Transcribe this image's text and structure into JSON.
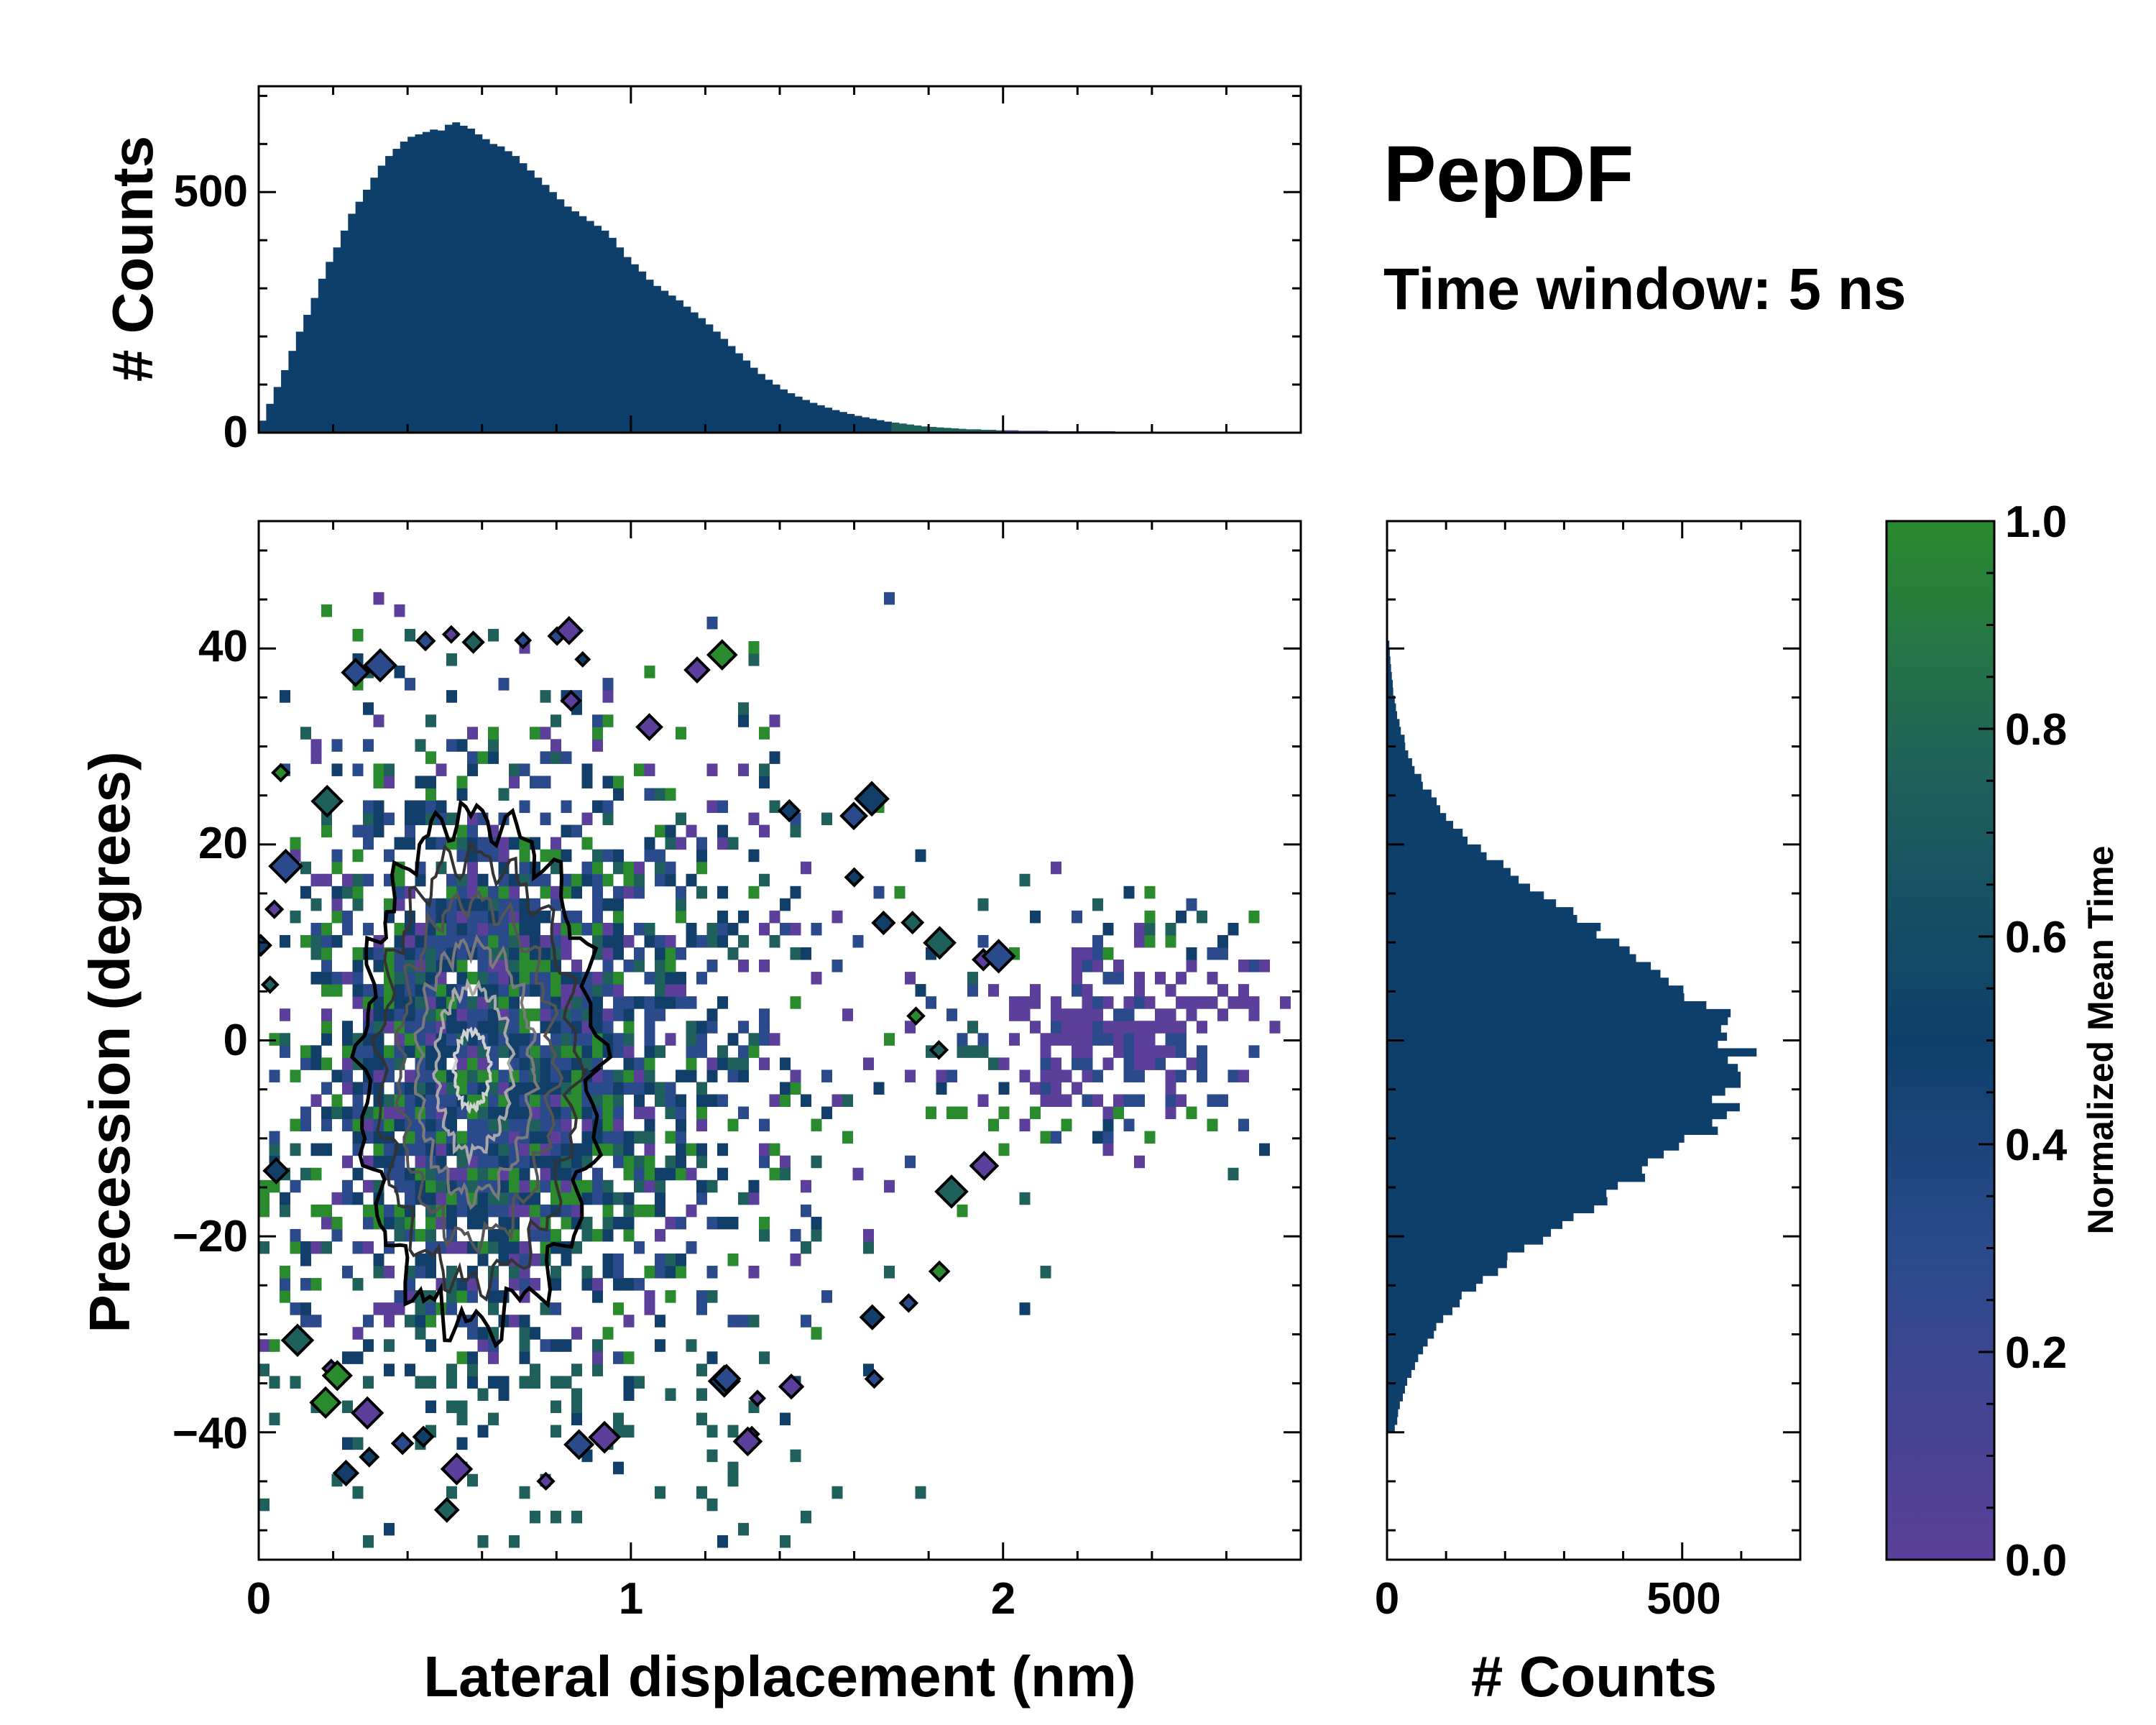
{
  "title": "PepDF",
  "subtitle": "Time window: 5 ns",
  "colors": {
    "bar": "#0e3f6a",
    "purple": "#5b3f9a",
    "blue": "#2a4a8c",
    "navy": "#123f6a",
    "teal": "#1f5f5c",
    "green": "#2a8a2e"
  },
  "chart_data": [
    {
      "id": "joint",
      "type": "heatmap",
      "xlabel": "Lateral displacement (nm)",
      "ylabel": "Precession (degrees)",
      "xlim": [
        0,
        2.8
      ],
      "ylim": [
        -53,
        53
      ],
      "x_ticks": [
        0,
        1,
        2
      ],
      "x_tick_labels": [
        "0",
        "1",
        "2"
      ],
      "y_ticks": [
        -40,
        -20,
        0,
        20,
        40
      ],
      "y_tick_labels": [
        "−40",
        "−20",
        "0",
        "20",
        "40"
      ],
      "density_center": {
        "x": 0.55,
        "y": -3
      },
      "density_spread": {
        "x": 0.42,
        "y": 17
      },
      "contour_levels": 5,
      "colorbar": {
        "label": "Normalized Mean Time",
        "range": [
          0.0,
          1.0
        ],
        "ticks": [
          "0.0",
          "0.2",
          "0.4",
          "0.6",
          "0.8",
          "1.0"
        ],
        "colors": [
          "#5b3f9a",
          "#2a4a8c",
          "#0e3f6a",
          "#1f5f5c",
          "#2a8a2e"
        ]
      }
    },
    {
      "id": "x-marginal",
      "type": "bar",
      "orientation": "vertical",
      "ylabel": "# Counts",
      "xlim": [
        0,
        2.8
      ],
      "ylim": [
        0,
        720
      ],
      "y_ticks": [
        0,
        500
      ],
      "y_tick_labels": [
        "0",
        "500"
      ],
      "bin_width": 0.02,
      "x": [
        0.01,
        0.03,
        0.05,
        0.07,
        0.09,
        0.11,
        0.13,
        0.15,
        0.17,
        0.19,
        0.21,
        0.23,
        0.25,
        0.27,
        0.29,
        0.31,
        0.33,
        0.35,
        0.37,
        0.39,
        0.41,
        0.43,
        0.45,
        0.47,
        0.49,
        0.51,
        0.53,
        0.55,
        0.57,
        0.59,
        0.61,
        0.63,
        0.65,
        0.67,
        0.69,
        0.71,
        0.73,
        0.75,
        0.77,
        0.79,
        0.81,
        0.83,
        0.85,
        0.87,
        0.89,
        0.91,
        0.93,
        0.95,
        0.97,
        0.99,
        1.01,
        1.03,
        1.05,
        1.07,
        1.09,
        1.11,
        1.13,
        1.15,
        1.17,
        1.19,
        1.21,
        1.23,
        1.25,
        1.27,
        1.29,
        1.31,
        1.33,
        1.35,
        1.37,
        1.39,
        1.41,
        1.43,
        1.45,
        1.47,
        1.49,
        1.51,
        1.53,
        1.55,
        1.57,
        1.59,
        1.61,
        1.63,
        1.65,
        1.67,
        1.69,
        1.71,
        1.73,
        1.75,
        1.77,
        1.79,
        1.81,
        1.83,
        1.85,
        1.87,
        1.89,
        1.91,
        1.93,
        1.95,
        1.97,
        1.99,
        2.01,
        2.03,
        2.05,
        2.07,
        2.09,
        2.11,
        2.13,
        2.15,
        2.17,
        2.19,
        2.21,
        2.23,
        2.25,
        2.27,
        2.29,
        2.31,
        2.33,
        2.35,
        2.37,
        2.39,
        2.41,
        2.43,
        2.45,
        2.47,
        2.49,
        2.51,
        2.53,
        2.55,
        2.57,
        2.59,
        2.61,
        2.63,
        2.65,
        2.67,
        2.69
      ],
      "values": [
        25,
        60,
        95,
        130,
        170,
        210,
        245,
        280,
        320,
        355,
        385,
        420,
        455,
        480,
        505,
        530,
        555,
        575,
        590,
        605,
        615,
        620,
        625,
        630,
        628,
        640,
        645,
        638,
        632,
        620,
        610,
        600,
        595,
        585,
        575,
        560,
        545,
        530,
        515,
        500,
        485,
        470,
        460,
        450,
        440,
        430,
        420,
        405,
        385,
        365,
        350,
        335,
        318,
        305,
        295,
        285,
        275,
        262,
        250,
        238,
        225,
        210,
        195,
        180,
        165,
        150,
        135,
        122,
        110,
        100,
        90,
        82,
        75,
        68,
        62,
        57,
        52,
        47,
        43,
        39,
        35,
        32,
        29,
        26,
        23,
        21,
        19,
        17,
        15,
        13,
        12,
        11,
        10,
        9,
        8,
        7,
        7,
        6,
        6,
        5,
        5,
        5,
        4,
        4,
        4,
        4,
        3,
        3,
        3,
        3,
        3,
        3,
        3,
        3,
        3,
        2,
        2,
        2,
        2,
        2,
        2,
        2,
        2,
        2,
        2,
        2,
        2,
        2,
        1,
        1,
        1,
        1,
        1,
        1,
        1
      ]
    },
    {
      "id": "y-marginal",
      "type": "bar",
      "orientation": "horizontal",
      "xlabel": "# Counts",
      "xlim": [
        0,
        700
      ],
      "ylim": [
        -53,
        53
      ],
      "x_ticks": [
        0,
        500
      ],
      "x_tick_labels": [
        "0",
        "500"
      ],
      "bin_width": 0.8,
      "mean": -3,
      "sd": 13.5,
      "peak": 600,
      "y_from": -40,
      "y_to": 40
    }
  ]
}
